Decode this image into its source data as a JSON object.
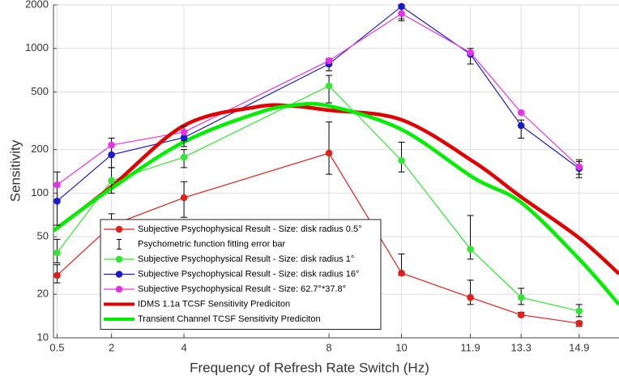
{
  "chart_data": {
    "type": "line",
    "x_label": "Frequency of Refresh Rate Switch (Hz)",
    "y_label": "Sensitivity",
    "xlim": [
      0.4,
      16
    ],
    "ylim": [
      10,
      2000
    ],
    "log_y": true,
    "grid": true,
    "xticks": [
      0.5,
      2,
      4,
      8,
      10,
      11.9,
      13.3,
      14.9
    ],
    "yticks": [
      10,
      20,
      50,
      100,
      200,
      500,
      1000,
      2000
    ],
    "legend_position": "lower left",
    "error_bar_label": "Psychometric function fitting error bar",
    "series": [
      {
        "name": "Subjective Psychophysical Result - Size: disk radius 0.5°",
        "color": "#e0201b",
        "markers": true,
        "x": [
          0.5,
          2,
          4,
          8,
          10,
          11.9,
          13.3,
          14.9
        ],
        "values": [
          27,
          60,
          93,
          189,
          28,
          19,
          14.4,
          12.6
        ],
        "error_low": [
          24,
          52,
          68,
          135,
          27,
          17,
          14,
          12
        ],
        "error_high": [
          32,
          72,
          120,
          310,
          38,
          25,
          15,
          13
        ]
      },
      {
        "name": "Subjective Psychophysical Result - Size: disk radius 1°",
        "color": "#33e633",
        "markers": true,
        "x": [
          0.5,
          2,
          4,
          8,
          10,
          11.9,
          13.3,
          14.9
        ],
        "values": [
          38.7,
          122,
          177,
          551,
          168,
          41,
          19,
          15.3
        ],
        "error_low": [
          33,
          100,
          150,
          420,
          140,
          35,
          17,
          14
        ],
        "error_high": [
          48,
          150,
          200,
          650,
          225,
          70,
          22,
          17
        ]
      },
      {
        "name": "Subjective Psychophysical Result - Size: disk radius 16°",
        "color": "#1a1acc",
        "markers": true,
        "x": [
          0.5,
          2,
          4,
          8,
          10,
          11.9,
          13.3,
          14.9
        ],
        "values": [
          88,
          184,
          242,
          780,
          1950,
          912,
          293,
          148
        ],
        "error_low": [
          60,
          150,
          210,
          700,
          1600,
          780,
          240,
          128
        ],
        "error_high": [
          140,
          210,
          270,
          850,
          2000,
          1000,
          320,
          165
        ]
      },
      {
        "name": "Subjective Psychophysical Result - Size: 62.7°*37.8°",
        "color": "#e633e6",
        "markers": true,
        "x": [
          0.5,
          2,
          4,
          8,
          10,
          11.9,
          13.3,
          14.9
        ],
        "values": [
          114,
          215,
          264,
          822,
          1740,
          935,
          360,
          152
        ],
        "error_low": [
          null,
          180,
          230,
          null,
          1550,
          null,
          null,
          135
        ],
        "error_high": [
          null,
          240,
          290,
          null,
          1900,
          null,
          null,
          170
        ]
      },
      {
        "name": "IDMS 1.1a TCSF Sensitivity Prediciton",
        "color": "#e00000",
        "markers": false,
        "x": [
          0.4,
          2,
          4,
          6,
          7,
          8,
          10,
          12,
          13.3,
          14.9,
          16
        ],
        "values": [
          55,
          111,
          293,
          394,
          400,
          374,
          321,
          164,
          94,
          49,
          27.7
        ]
      },
      {
        "name": "Transient Channel TCSF Sensitivity Prediciton",
        "color": "#00ee00",
        "markers": false,
        "x": [
          0.4,
          2,
          4,
          6,
          7,
          8,
          10,
          12,
          13.3,
          14.9,
          16
        ],
        "values": [
          55,
          108,
          226,
          356,
          404,
          400,
          275,
          127,
          86,
          35,
          17
        ]
      }
    ]
  }
}
